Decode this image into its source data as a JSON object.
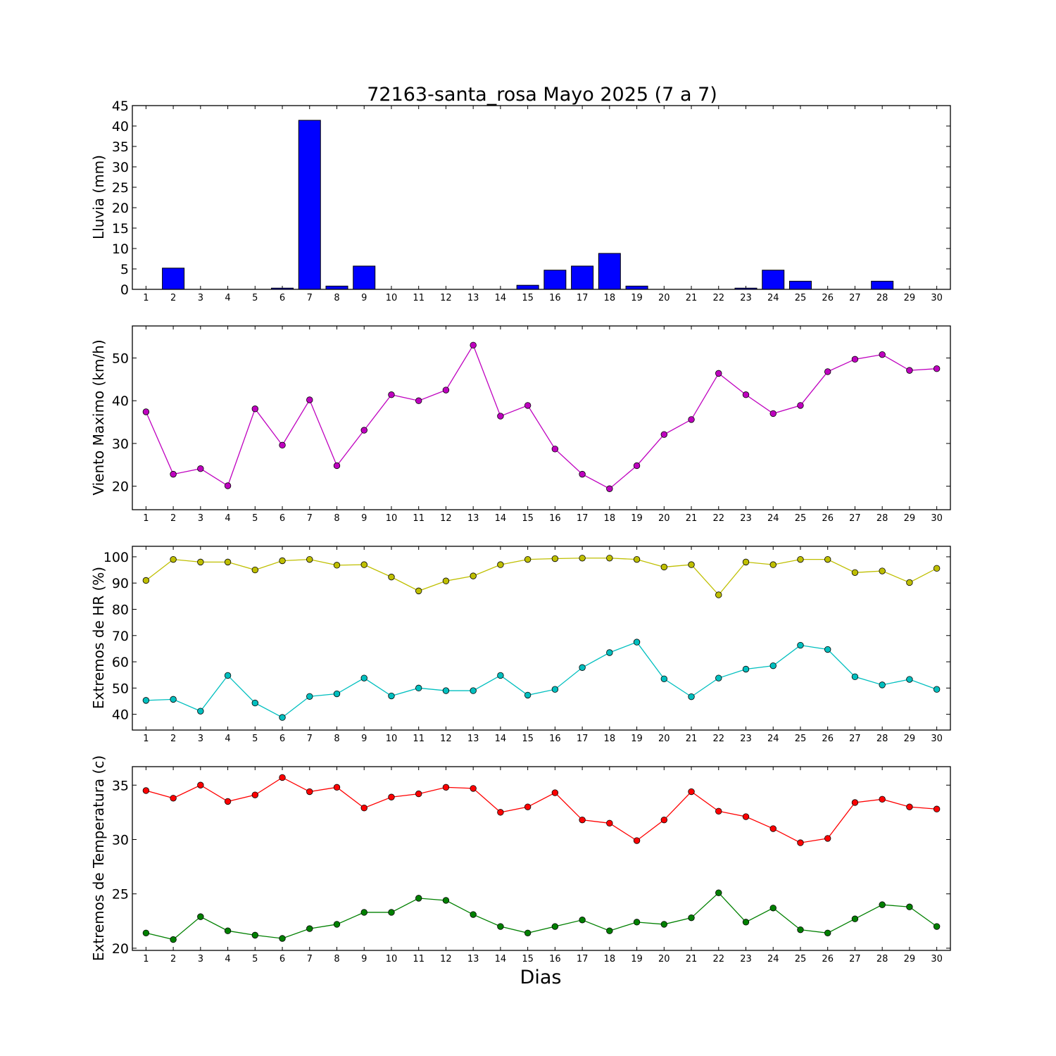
{
  "chart_data": [
    {
      "type": "bar",
      "title": "72163-santa_rosa Mayo 2025  (7 a 7)",
      "ylabel": "Lluvia (mm)",
      "ylim": [
        0,
        45
      ],
      "yticks": [
        0,
        5,
        10,
        15,
        20,
        25,
        30,
        35,
        40,
        45
      ],
      "categories": [
        "1",
        "2",
        "3",
        "4",
        "5",
        "6",
        "7",
        "8",
        "9",
        "10",
        "11",
        "12",
        "13",
        "14",
        "15",
        "16",
        "17",
        "18",
        "19",
        "20",
        "21",
        "22",
        "23",
        "24",
        "25",
        "26",
        "27",
        "28",
        "29",
        "30"
      ],
      "series": [
        {
          "color": "#0000ff",
          "values": [
            0,
            5.2,
            0,
            0,
            0,
            0.3,
            41.4,
            0.8,
            5.7,
            0,
            0,
            0,
            0,
            0,
            1.0,
            4.7,
            5.7,
            8.8,
            0.8,
            0,
            0,
            0,
            0.3,
            4.7,
            2.0,
            0,
            0,
            2.0,
            0,
            0
          ]
        }
      ]
    },
    {
      "type": "line",
      "ylabel": "Viento Maximo (km/h)",
      "ylim": [
        14.5,
        57.5
      ],
      "yticks": [
        20,
        30,
        40,
        50
      ],
      "categories": [
        "1",
        "2",
        "3",
        "4",
        "5",
        "6",
        "7",
        "8",
        "9",
        "10",
        "11",
        "12",
        "13",
        "14",
        "15",
        "16",
        "17",
        "18",
        "19",
        "20",
        "21",
        "22",
        "23",
        "24",
        "25",
        "26",
        "27",
        "28",
        "29",
        "30"
      ],
      "series": [
        {
          "color": "#bf00bf",
          "values": [
            37.4,
            22.8,
            24.1,
            20.1,
            38.1,
            29.6,
            40.2,
            24.8,
            33.1,
            41.4,
            40.0,
            42.5,
            53.0,
            36.4,
            38.9,
            28.7,
            22.8,
            19.4,
            24.8,
            32.1,
            35.6,
            46.4,
            41.4,
            37.0,
            38.9,
            46.8,
            49.7,
            50.8,
            47.1,
            47.5
          ]
        }
      ]
    },
    {
      "type": "line",
      "ylabel": "Extremos de HR (%)",
      "ylim": [
        34,
        104
      ],
      "yticks": [
        40,
        50,
        60,
        70,
        80,
        90,
        100
      ],
      "categories": [
        "1",
        "2",
        "3",
        "4",
        "5",
        "6",
        "7",
        "8",
        "9",
        "10",
        "11",
        "12",
        "13",
        "14",
        "15",
        "16",
        "17",
        "18",
        "19",
        "20",
        "21",
        "22",
        "23",
        "24",
        "25",
        "26",
        "27",
        "28",
        "29",
        "30"
      ],
      "series": [
        {
          "color": "#bfbf00",
          "values": [
            91,
            99,
            98,
            98,
            95,
            98.5,
            99,
            96.8,
            97,
            92.3,
            87,
            90.8,
            92.7,
            97,
            99,
            99.3,
            99.5,
            99.5,
            99,
            96.1,
            97,
            85.5,
            98,
            97,
            99,
            99,
            94,
            94.6,
            90.2,
            95.6
          ]
        },
        {
          "color": "#00bfbf",
          "values": [
            45.3,
            45.7,
            41.2,
            54.8,
            44.3,
            38.8,
            46.8,
            47.8,
            53.8,
            47,
            50,
            49,
            49,
            54.8,
            47.3,
            49.5,
            57.8,
            63.5,
            67.5,
            53.5,
            46.7,
            53.8,
            57.2,
            58.5,
            66.3,
            64.7,
            54.3,
            51.2,
            53.3,
            49.5
          ]
        }
      ]
    },
    {
      "type": "line",
      "ylabel": "Extremos de Temperatura (c)",
      "xlabel": "Dias",
      "ylim": [
        19.8,
        36.7
      ],
      "yticks": [
        20,
        25,
        30,
        35
      ],
      "categories": [
        "1",
        "2",
        "3",
        "4",
        "5",
        "6",
        "7",
        "8",
        "9",
        "10",
        "11",
        "12",
        "13",
        "14",
        "15",
        "16",
        "17",
        "18",
        "19",
        "20",
        "21",
        "22",
        "23",
        "24",
        "25",
        "26",
        "27",
        "28",
        "29",
        "30"
      ],
      "series": [
        {
          "color": "#ff0000",
          "values": [
            34.5,
            33.8,
            35.0,
            33.5,
            34.1,
            35.7,
            34.4,
            34.8,
            32.9,
            33.9,
            34.2,
            34.8,
            34.7,
            32.5,
            33.0,
            34.3,
            31.8,
            31.5,
            29.9,
            31.8,
            34.4,
            32.6,
            32.1,
            31.0,
            29.7,
            30.1,
            33.4,
            33.7,
            33.0,
            32.8
          ]
        },
        {
          "color": "#008000",
          "values": [
            21.4,
            20.8,
            22.9,
            21.6,
            21.2,
            20.9,
            21.8,
            22.2,
            23.3,
            23.3,
            24.6,
            24.4,
            23.1,
            22.0,
            21.4,
            22.0,
            22.6,
            21.6,
            22.4,
            22.2,
            22.8,
            25.1,
            22.4,
            23.7,
            21.7,
            21.4,
            22.7,
            24.0,
            23.8,
            22.0
          ]
        }
      ]
    }
  ]
}
